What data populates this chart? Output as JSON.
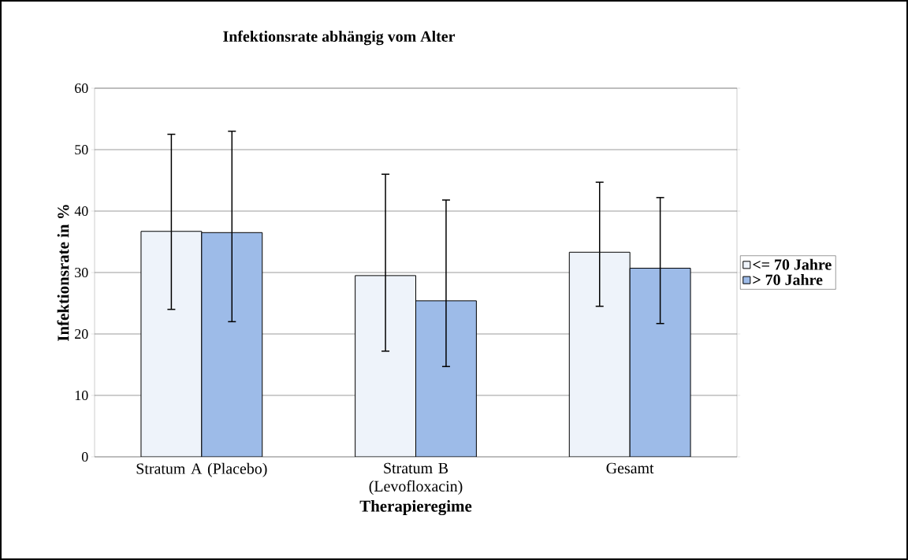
{
  "chart_data": {
    "type": "bar",
    "title": "Infektionsrate abhängig vom Alter",
    "xlabel": "Therapieregime",
    "ylabel": "Infektionsrate in %",
    "categories": [
      "Stratum A (Placebo)",
      "Stratum B (Levofloxacin)",
      "Gesamt"
    ],
    "series": [
      {
        "name": "<= 70 Jahre",
        "color": "#eef3fa",
        "values": [
          36.7,
          29.5,
          33.3
        ],
        "errors": [
          [
            24,
            52.5
          ],
          [
            17.2,
            46
          ],
          [
            24.5,
            44.7
          ]
        ]
      },
      {
        "name": "> 70 Jahre",
        "color": "#9dbbe8",
        "values": [
          36.5,
          25.4,
          30.7
        ],
        "errors": [
          [
            22,
            53
          ],
          [
            14.7,
            41.8
          ],
          [
            21.7,
            42.2
          ]
        ]
      }
    ],
    "ylim": [
      0,
      60
    ],
    "yticks": [
      0,
      10,
      20,
      30,
      40,
      50,
      60
    ],
    "grid": "y",
    "legend": "right"
  }
}
